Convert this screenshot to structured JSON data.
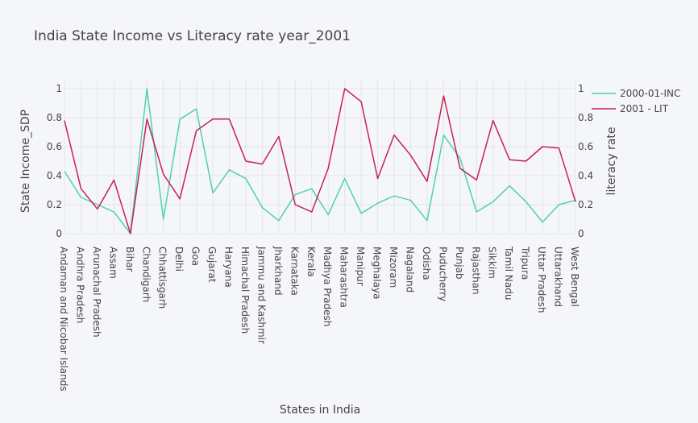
{
  "chart_data": {
    "type": "line",
    "title": "India State Income vs Literacy rate year_2001",
    "xlabel": "States in India",
    "ylabel": "State Income_SDP",
    "y2label": "literacy rate",
    "ylim": [
      0,
      1
    ],
    "y2lim": [
      0,
      1
    ],
    "yticks": [
      "0",
      "0.2",
      "0.4",
      "0.6",
      "0.8",
      "1"
    ],
    "y2ticks": [
      "0",
      "0.2",
      "0.4",
      "0.6",
      "0.8",
      "1"
    ],
    "grid": true,
    "legend_position": "top-right",
    "categories": [
      "Andaman and Nicobar Islands",
      "Andhra Pradesh",
      "Arunachal Pradesh",
      "Assam",
      "Bihar",
      "Chandigarh",
      "Chhattisgarh",
      "Delhi",
      "Goa",
      "Gujarat",
      "Haryana",
      "Himachal Pradesh",
      "Jammu and Kashmir",
      "Jharkhand",
      "Karnataka",
      "Kerala",
      "Madhya Pradesh",
      "Maharashtra",
      "Manipur",
      "Meghalaya",
      "Mizoram",
      "Nagaland",
      "Odisha",
      "Puducherry",
      "Punjab",
      "Rajasthan",
      "Sikkim",
      "Tamil Nadu",
      "Tripura",
      "Uttar Pradesh",
      "Uttarakhand",
      "West Bengal"
    ],
    "series": [
      {
        "name": "2000-01-INC",
        "color": "#4fd1b2",
        "axis": "left",
        "values": [
          0.43,
          0.25,
          0.2,
          0.15,
          0.0,
          1.0,
          0.1,
          0.79,
          0.86,
          0.28,
          0.44,
          0.38,
          0.18,
          0.09,
          0.27,
          0.31,
          0.13,
          0.38,
          0.14,
          0.21,
          0.26,
          0.23,
          0.09,
          0.68,
          0.52,
          0.15,
          0.22,
          0.33,
          0.22,
          0.08,
          0.2,
          0.23
        ]
      },
      {
        "name": "2001 - LIT",
        "color": "#c8224e",
        "axis": "right",
        "values": [
          0.78,
          0.31,
          0.17,
          0.37,
          0.0,
          0.79,
          0.41,
          0.24,
          0.71,
          0.79,
          0.79,
          0.5,
          0.48,
          0.67,
          0.2,
          0.15,
          0.45,
          1.0,
          0.91,
          0.38,
          0.68,
          0.54,
          0.36,
          0.95,
          0.45,
          0.37,
          0.78,
          0.51,
          0.5,
          0.6,
          0.59,
          0.22
        ]
      }
    ]
  }
}
